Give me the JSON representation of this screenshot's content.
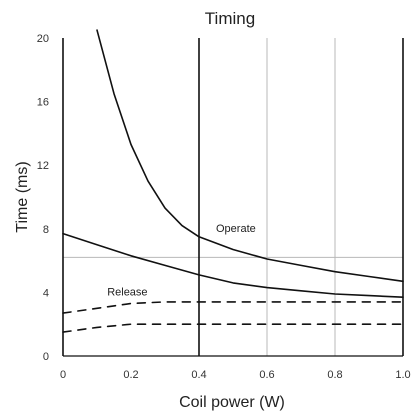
{
  "chart_data": {
    "type": "line",
    "title": "Timing",
    "xlabel": "Coil power (W)",
    "ylabel": "Time (ms)",
    "xlim": [
      0,
      1.0
    ],
    "ylim": [
      0,
      20
    ],
    "x_ticks": [
      "0",
      "0.2",
      "0.4",
      "0.6",
      "0.8",
      "1.0"
    ],
    "y_ticks": [
      "0",
      "4",
      "8",
      "12",
      "16",
      "20"
    ],
    "vertical_lines": [
      {
        "x": 0.4,
        "style": "dark"
      },
      {
        "x": 0.6,
        "style": "light"
      },
      {
        "x": 0.8,
        "style": "light"
      },
      {
        "x": 1.0,
        "style": "dark"
      }
    ],
    "horizontal_lines": [
      {
        "y": 6.2,
        "style": "light"
      }
    ],
    "annotations": [
      {
        "text": "Operate",
        "x": 0.45,
        "y": 7.8
      },
      {
        "text": "Release",
        "x": 0.13,
        "y": 3.8
      }
    ],
    "series": [
      {
        "style": "solid",
        "x": [
          0.1,
          0.15,
          0.2,
          0.25,
          0.3,
          0.35,
          0.4,
          0.5,
          0.6,
          0.7,
          0.8,
          0.9,
          1.0
        ],
        "y": [
          20.5,
          16.5,
          13.3,
          11.0,
          9.3,
          8.2,
          7.5,
          6.7,
          6.1,
          5.7,
          5.3,
          5.0,
          4.7
        ]
      },
      {
        "style": "solid",
        "x": [
          0.0,
          0.1,
          0.2,
          0.3,
          0.4,
          0.5,
          0.6,
          0.7,
          0.8,
          0.9,
          1.0
        ],
        "y": [
          7.7,
          7.0,
          6.3,
          5.7,
          5.1,
          4.6,
          4.3,
          4.1,
          3.9,
          3.8,
          3.7
        ]
      },
      {
        "style": "dashed",
        "x": [
          0.0,
          0.1,
          0.2,
          0.3,
          0.4,
          0.6,
          0.8,
          1.0
        ],
        "y": [
          2.7,
          3.0,
          3.3,
          3.4,
          3.4,
          3.4,
          3.4,
          3.4
        ]
      },
      {
        "style": "dashed",
        "x": [
          0.0,
          0.1,
          0.2,
          0.3,
          0.4,
          0.6,
          0.8,
          1.0
        ],
        "y": [
          1.5,
          1.8,
          2.0,
          2.0,
          2.0,
          2.0,
          2.0,
          2.0
        ]
      }
    ]
  }
}
